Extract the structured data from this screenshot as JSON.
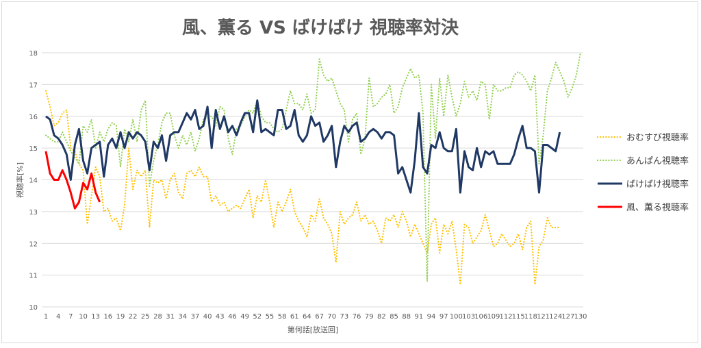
{
  "chart_data": {
    "type": "line",
    "title": "風、薫る VS ばけばけ 視聴率対決",
    "xlabel": "第何話[放送回]",
    "ylabel": "視聴率[%]",
    "xlim": [
      1,
      130
    ],
    "ylim": [
      10,
      18
    ],
    "ytick_step": 1,
    "xtick_step": 3,
    "grid": true,
    "legend_position": "right",
    "series": [
      {
        "name": "おむすび視聴率",
        "color": "#FFC000",
        "style": "dotted",
        "values": [
          16.8,
          16.3,
          15.7,
          15.8,
          16.1,
          16.2,
          15.0,
          14.9,
          14.5,
          14.3,
          12.6,
          13.5,
          14.4,
          14.1,
          13.0,
          13.1,
          12.7,
          12.8,
          12.4,
          13.2,
          15.0,
          13.7,
          14.3,
          14.1,
          14.3,
          12.5,
          14.0,
          13.9,
          14.0,
          13.4,
          14.0,
          14.2,
          13.6,
          13.4,
          14.2,
          14.3,
          14.1,
          14.4,
          14.1,
          14.1,
          13.3,
          13.5,
          13.2,
          13.3,
          13.0,
          13.1,
          13.2,
          13.1,
          13.4,
          13.7,
          12.8,
          13.5,
          13.3,
          14.0,
          13.3,
          12.5,
          13.3,
          13.0,
          13.3,
          13.7,
          13.0,
          12.7,
          12.5,
          12.2,
          12.9,
          12.7,
          13.4,
          12.8,
          12.6,
          12.3,
          11.4,
          13.0,
          12.6,
          12.8,
          12.9,
          13.3,
          12.7,
          12.9,
          12.6,
          12.7,
          12.4,
          12.0,
          12.8,
          12.7,
          12.9,
          12.5,
          13.0,
          12.7,
          12.2,
          12.6,
          12.3,
          12.0,
          11.7,
          12.6,
          12.8,
          11.7,
          12.6,
          12.3,
          12.7,
          11.8,
          10.7,
          12.6,
          12.5,
          12.0,
          12.2,
          12.4,
          12.9,
          12.4,
          11.9,
          12.0,
          12.3,
          12.1,
          11.9,
          12.0,
          12.3,
          11.8,
          12.5,
          12.7,
          10.7,
          11.9,
          12.1,
          12.8,
          12.5,
          12.5,
          12.5
        ]
      },
      {
        "name": "あんぱん視聴率",
        "color": "#92D050",
        "style": "dotted",
        "values": [
          15.4,
          15.3,
          15.2,
          15.2,
          15.5,
          15.2,
          14.9,
          14.7,
          14.5,
          15.7,
          15.5,
          15.9,
          15.0,
          15.5,
          15.2,
          15.6,
          15.8,
          15.7,
          14.4,
          15.6,
          15.2,
          15.9,
          15.2,
          16.2,
          16.5,
          13.8,
          14.6,
          15.1,
          15.8,
          16.1,
          16.1,
          15.4,
          15.0,
          15.4,
          15.1,
          15.5,
          14.9,
          15.3,
          15.9,
          16.0,
          16.0,
          15.7,
          16.3,
          16.2,
          15.3,
          14.8,
          15.6,
          15.7,
          16.0,
          16.2,
          16.1,
          16.5,
          16.0,
          15.8,
          15.8,
          15.6,
          15.5,
          15.6,
          16.2,
          16.8,
          16.4,
          16.4,
          16.2,
          16.7,
          16.1,
          16.2,
          17.8,
          17.3,
          17.1,
          17.2,
          16.8,
          16.4,
          16.2,
          15.2,
          15.9,
          16.1,
          14.8,
          15.3,
          17.2,
          16.3,
          16.4,
          16.6,
          16.7,
          17.0,
          16.1,
          16.3,
          16.9,
          17.2,
          17.5,
          17.2,
          17.3,
          16.1,
          10.8,
          17.0,
          15.3,
          17.2,
          16.0,
          17.3,
          16.6,
          16.0,
          16.4,
          17.1,
          16.6,
          16.8,
          16.5,
          17.1,
          17.0,
          15.9,
          17.0,
          16.8,
          16.8,
          16.9,
          16.9,
          17.3,
          17.4,
          17.3,
          17.1,
          16.8,
          17.3,
          14.5,
          15.4,
          16.8,
          17.2,
          17.7,
          17.4,
          17.1,
          16.6,
          16.9,
          17.3,
          18.0
        ]
      },
      {
        "name": "ばけばけ視聴率",
        "color": "#1F3864",
        "style": "solid",
        "values": [
          16.0,
          15.9,
          15.4,
          15.3,
          15.1,
          14.8,
          14.0,
          15.1,
          15.6,
          14.6,
          14.2,
          15.0,
          15.1,
          15.2,
          14.1,
          15.1,
          15.3,
          15.0,
          15.5,
          15.0,
          15.5,
          15.3,
          15.5,
          15.4,
          15.2,
          14.3,
          15.2,
          15.0,
          15.4,
          14.6,
          15.4,
          15.5,
          15.5,
          15.8,
          16.1,
          15.9,
          16.2,
          15.6,
          15.7,
          16.3,
          15.0,
          16.2,
          15.6,
          16.0,
          15.5,
          15.7,
          15.4,
          15.8,
          16.1,
          16.1,
          15.5,
          16.5,
          15.5,
          15.6,
          15.5,
          15.4,
          16.2,
          16.2,
          15.6,
          15.7,
          16.2,
          15.4,
          15.2,
          15.4,
          16.0,
          15.7,
          15.8,
          15.2,
          15.4,
          15.7,
          14.4,
          15.2,
          15.7,
          15.5,
          15.7,
          15.8,
          15.2,
          15.3,
          15.5,
          15.6,
          15.5,
          15.3,
          15.5,
          15.5,
          15.4,
          14.2,
          14.4,
          14.0,
          13.6,
          14.6,
          16.1,
          14.4,
          14.2,
          15.1,
          15.0,
          15.5,
          15.0,
          14.9,
          14.9,
          15.6,
          13.6,
          14.9,
          14.4,
          14.3,
          15.0,
          14.4,
          14.9,
          14.8,
          14.9,
          14.5,
          14.5,
          14.5,
          14.5,
          14.8,
          15.3,
          15.7,
          15.0,
          15.0,
          14.9,
          13.6,
          15.1,
          15.1,
          15.0,
          14.9,
          15.5
        ]
      },
      {
        "name": "風、薫る視聴率",
        "color": "#FF0000",
        "style": "solid",
        "values": [
          14.9,
          14.2,
          14.0,
          14.0,
          14.3,
          14.0,
          13.6,
          13.1,
          13.3,
          13.9,
          13.7,
          14.2,
          13.6,
          13.3
        ]
      }
    ]
  }
}
